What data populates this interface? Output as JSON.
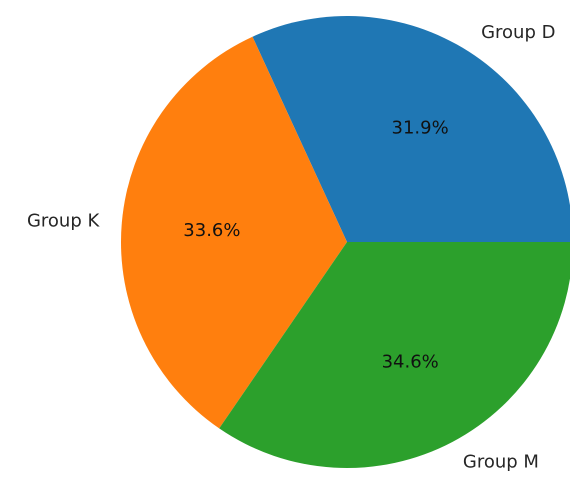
{
  "chart_data": {
    "type": "pie",
    "title": "",
    "slices": [
      {
        "label": "Group D",
        "value": 31.9,
        "pct_label": "31.9%",
        "color": "#1f77b4"
      },
      {
        "label": "Group K",
        "value": 33.6,
        "pct_label": "33.6%",
        "color": "#ff7f0e"
      },
      {
        "label": "Group M",
        "value": 34.6,
        "pct_label": "34.6%",
        "color": "#2ca02c"
      }
    ],
    "start_angle_deg": 0,
    "direction": "counterclockwise",
    "legend": "none"
  }
}
